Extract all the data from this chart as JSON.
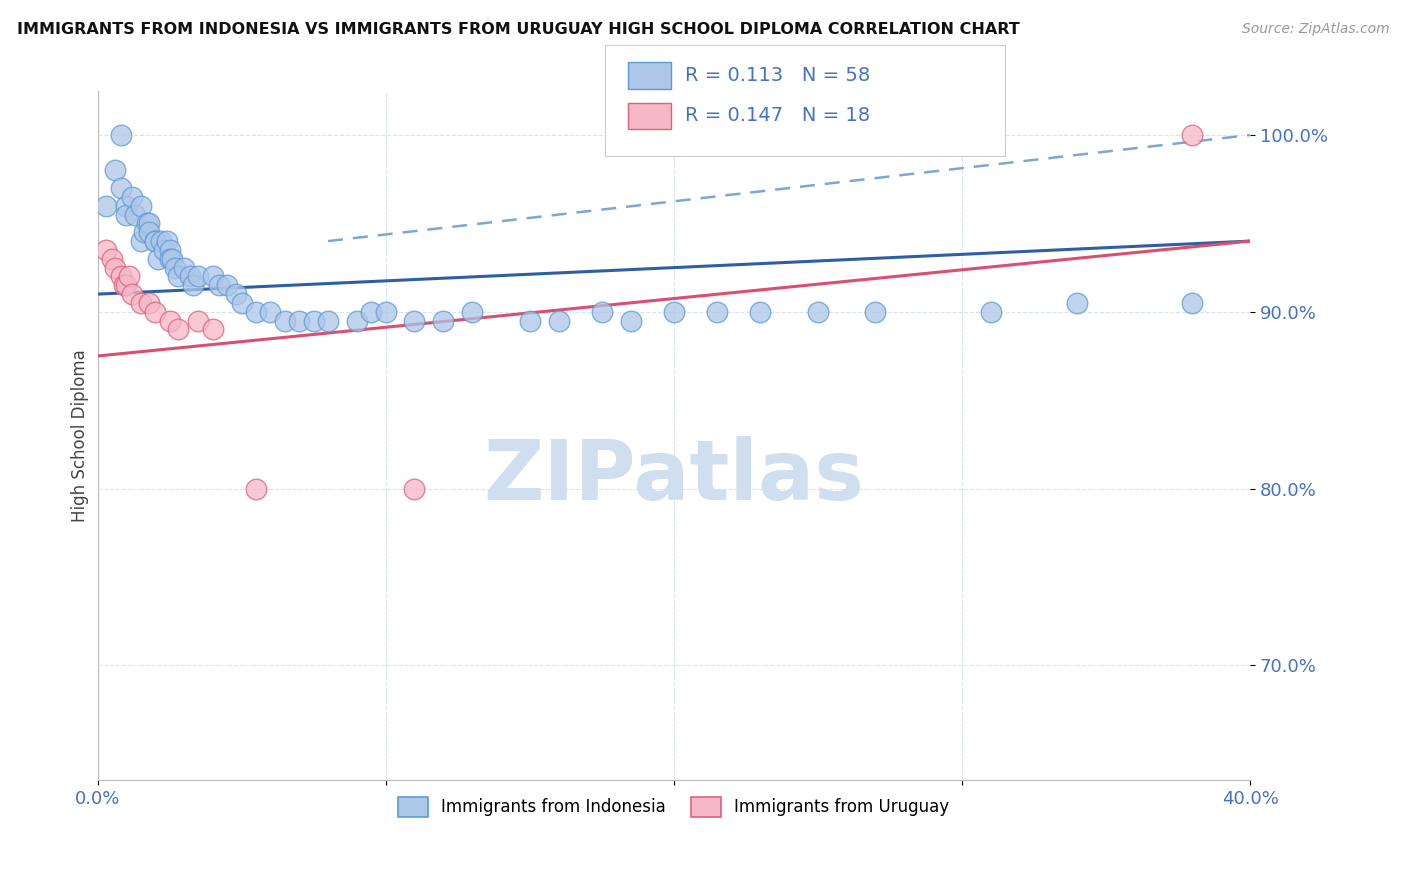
{
  "title": "IMMIGRANTS FROM INDONESIA VS IMMIGRANTS FROM URUGUAY HIGH SCHOOL DIPLOMA CORRELATION CHART",
  "source": "Source: ZipAtlas.com",
  "ylabel": "High School Diploma",
  "xlim": [
    0.0,
    0.4
  ],
  "ylim": [
    0.635,
    1.025
  ],
  "xtick_positions": [
    0.0,
    0.1,
    0.2,
    0.3,
    0.4
  ],
  "xtick_labels": [
    "0.0%",
    "",
    "",
    "",
    "40.0%"
  ],
  "ytick_positions": [
    0.7,
    0.8,
    0.9,
    1.0
  ],
  "ytick_labels": [
    "70.0%",
    "80.0%",
    "90.0%",
    "100.0%"
  ],
  "legend_r1": "R = 0.113",
  "legend_n1": "N = 58",
  "legend_r2": "R = 0.147",
  "legend_n2": "N = 18",
  "legend_label1": "Immigrants from Indonesia",
  "legend_label2": "Immigrants from Uruguay",
  "color_indonesia_fill": "#aec6e8",
  "color_indonesia_edge": "#5b9bd5",
  "color_uruguay_fill": "#f4b8c8",
  "color_uruguay_edge": "#e0607a",
  "color_trendline_blue": "#2e5fa3",
  "color_trendline_pink": "#d94f6e",
  "color_dashed_blue": "#7aa7d4",
  "watermark_color": "#d0dff0",
  "grid_color": "#d8e4f0",
  "indonesia_x": [
    0.003,
    0.006,
    0.008,
    0.008,
    0.01,
    0.01,
    0.012,
    0.013,
    0.015,
    0.015,
    0.016,
    0.017,
    0.018,
    0.018,
    0.02,
    0.02,
    0.021,
    0.022,
    0.023,
    0.024,
    0.025,
    0.025,
    0.026,
    0.027,
    0.028,
    0.03,
    0.032,
    0.033,
    0.035,
    0.04,
    0.042,
    0.045,
    0.048,
    0.05,
    0.055,
    0.06,
    0.065,
    0.07,
    0.075,
    0.08,
    0.09,
    0.095,
    0.1,
    0.11,
    0.12,
    0.13,
    0.15,
    0.16,
    0.175,
    0.185,
    0.2,
    0.215,
    0.23,
    0.25,
    0.27,
    0.31,
    0.34,
    0.38
  ],
  "indonesia_y": [
    0.96,
    0.98,
    1.0,
    0.97,
    0.96,
    0.955,
    0.965,
    0.955,
    0.96,
    0.94,
    0.945,
    0.95,
    0.95,
    0.945,
    0.94,
    0.94,
    0.93,
    0.94,
    0.935,
    0.94,
    0.935,
    0.93,
    0.93,
    0.925,
    0.92,
    0.925,
    0.92,
    0.915,
    0.92,
    0.92,
    0.915,
    0.915,
    0.91,
    0.905,
    0.9,
    0.9,
    0.895,
    0.895,
    0.895,
    0.895,
    0.895,
    0.9,
    0.9,
    0.895,
    0.895,
    0.9,
    0.895,
    0.895,
    0.9,
    0.895,
    0.9,
    0.9,
    0.9,
    0.9,
    0.9,
    0.9,
    0.905,
    0.905
  ],
  "uruguay_x": [
    0.003,
    0.005,
    0.006,
    0.008,
    0.009,
    0.01,
    0.011,
    0.012,
    0.015,
    0.018,
    0.02,
    0.025,
    0.028,
    0.035,
    0.04,
    0.055,
    0.11,
    0.38
  ],
  "uruguay_y": [
    0.935,
    0.93,
    0.925,
    0.92,
    0.915,
    0.915,
    0.92,
    0.91,
    0.905,
    0.905,
    0.9,
    0.895,
    0.89,
    0.895,
    0.89,
    0.8,
    0.8,
    1.0
  ],
  "trendline_blue_x0": 0.0,
  "trendline_blue_y0": 0.91,
  "trendline_blue_x1": 0.4,
  "trendline_blue_y1": 0.94,
  "trendline_dashed_x0": 0.08,
  "trendline_dashed_y0": 0.94,
  "trendline_dashed_x1": 0.4,
  "trendline_dashed_y1": 1.0,
  "trendline_pink_x0": 0.0,
  "trendline_pink_y0": 0.875,
  "trendline_pink_x1": 0.4,
  "trendline_pink_y1": 0.94
}
